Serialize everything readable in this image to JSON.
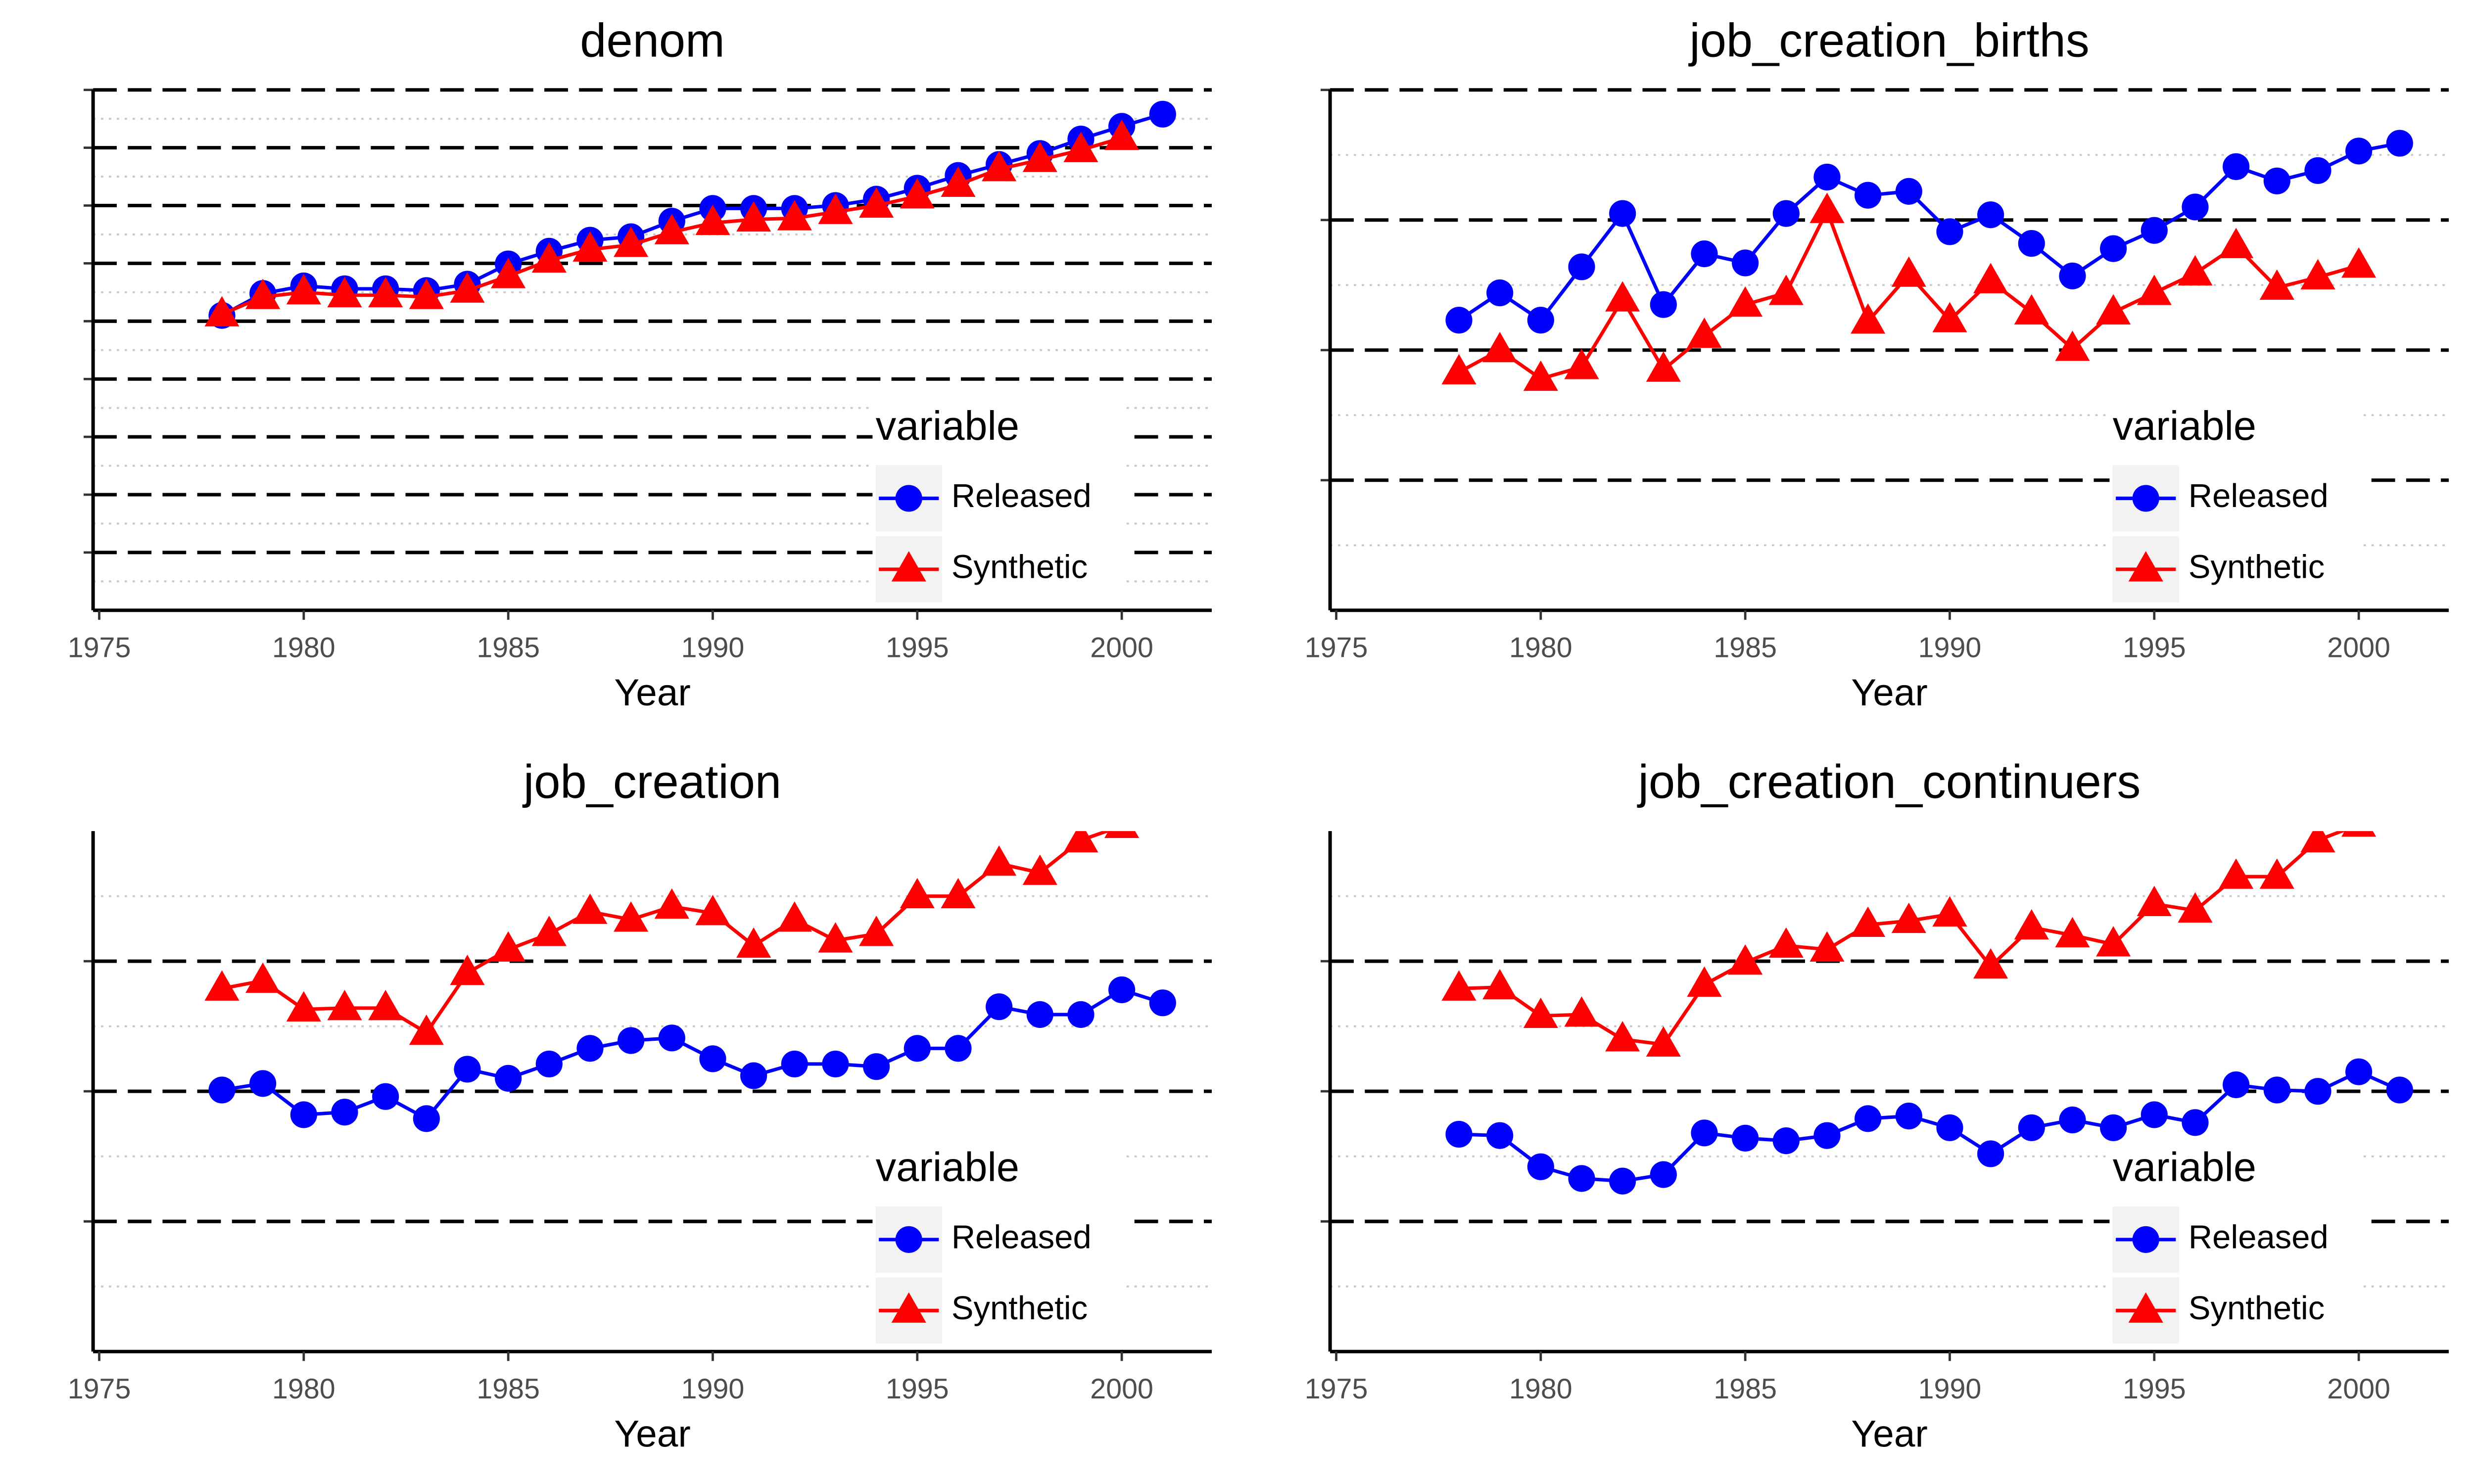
{
  "chart_data": [
    {
      "type": "line",
      "title": "denom",
      "x_label": "Year",
      "x": [
        1978,
        1979,
        1980,
        1981,
        1982,
        1983,
        1984,
        1985,
        1986,
        1987,
        1988,
        1989,
        1990,
        1991,
        1992,
        1993,
        1994,
        1995,
        1996,
        1997,
        1998,
        1999,
        2000,
        2001
      ],
      "series": [
        {
          "name": "Released",
          "color": "#0000ff",
          "marker": "circle",
          "values": [
            5.1,
            5.48,
            5.61,
            5.56,
            5.56,
            5.53,
            5.64,
            5.99,
            6.21,
            6.4,
            6.46,
            6.73,
            6.95,
            6.95,
            6.95,
            7.0,
            7.11,
            7.3,
            7.52,
            7.71,
            7.9,
            8.15,
            8.37,
            8.58
          ]
        },
        {
          "name": "Synthetic",
          "color": "#ff0000",
          "marker": "triangle",
          "values": [
            5.12,
            5.42,
            5.5,
            5.45,
            5.45,
            5.42,
            5.53,
            5.78,
            6.05,
            6.24,
            6.32,
            6.54,
            6.7,
            6.76,
            6.78,
            6.89,
            7.0,
            7.16,
            7.36,
            7.63,
            7.79,
            7.96,
            8.17,
            null
          ]
        }
      ],
      "xlim": [
        1974.85,
        2002.2
      ],
      "xticks": [
        1975,
        1980,
        1985,
        1990,
        1995,
        2000
      ],
      "ylim": [
        0,
        9
      ],
      "yticks": [
        1,
        2,
        3,
        4,
        5,
        6,
        7,
        8,
        9
      ],
      "grid": true,
      "legend_title": "variable",
      "legend_position": "bottom-right"
    },
    {
      "type": "line",
      "title": "job_creation_births",
      "x_label": "Year",
      "x": [
        1978,
        1979,
        1980,
        1981,
        1982,
        1983,
        1984,
        1985,
        1986,
        1987,
        1988,
        1989,
        1990,
        1991,
        1992,
        1993,
        1994,
        1995,
        1996,
        1997,
        1998,
        1999,
        2000,
        2001
      ],
      "series": [
        {
          "name": "Released",
          "color": "#0000ff",
          "marker": "circle",
          "values": [
            2.23,
            2.44,
            2.23,
            2.64,
            3.05,
            2.35,
            2.74,
            2.67,
            3.05,
            3.33,
            3.19,
            3.22,
            2.91,
            3.04,
            2.82,
            2.57,
            2.78,
            2.92,
            3.1,
            3.41,
            3.3,
            3.38,
            3.53,
            3.59
          ]
        },
        {
          "name": "Synthetic",
          "color": "#ff0000",
          "marker": "triangle",
          "values": [
            1.83,
            2.0,
            1.78,
            1.87,
            2.39,
            1.85,
            2.11,
            2.35,
            2.44,
            3.07,
            2.22,
            2.58,
            2.23,
            2.53,
            2.29,
            2.01,
            2.29,
            2.44,
            2.59,
            2.8,
            2.48,
            2.56,
            2.65,
            null
          ]
        }
      ],
      "xlim": [
        1974.85,
        2002.2
      ],
      "xticks": [
        1975,
        1980,
        1985,
        1990,
        1995,
        2000
      ],
      "ylim": [
        0,
        4
      ],
      "yticks": [
        1,
        2,
        3,
        4
      ],
      "grid": true,
      "legend_title": "variable",
      "legend_position": "bottom-right"
    },
    {
      "type": "line",
      "title": "job_creation",
      "x_label": "Year",
      "x": [
        1978,
        1979,
        1980,
        1981,
        1982,
        1983,
        1984,
        1985,
        1986,
        1987,
        1988,
        1989,
        1990,
        1991,
        1992,
        1993,
        1994,
        1995,
        1996,
        1997,
        1998,
        1999,
        2000,
        2001
      ],
      "series": [
        {
          "name": "Released",
          "color": "#0000ff",
          "marker": "circle",
          "values": [
            2.01,
            2.06,
            1.82,
            1.84,
            1.96,
            1.79,
            2.17,
            2.1,
            2.21,
            2.33,
            2.39,
            2.41,
            2.25,
            2.12,
            2.21,
            2.21,
            2.19,
            2.33,
            2.33,
            2.65,
            2.59,
            2.59,
            2.78,
            2.68
          ]
        },
        {
          "name": "Synthetic",
          "color": "#ff0000",
          "marker": "triangle",
          "values": [
            2.79,
            2.85,
            2.63,
            2.64,
            2.64,
            2.45,
            2.91,
            3.09,
            3.21,
            3.38,
            3.32,
            3.42,
            3.37,
            3.12,
            3.32,
            3.16,
            3.21,
            3.5,
            3.5,
            3.75,
            3.68,
            3.93,
            4.04,
            null
          ]
        }
      ],
      "xlim": [
        1974.85,
        2002.2
      ],
      "xticks": [
        1975,
        1980,
        1985,
        1990,
        1995,
        2000
      ],
      "ylim": [
        0,
        4
      ],
      "yticks": [
        1,
        2,
        3
      ],
      "grid": true,
      "legend_title": "variable",
      "legend_position": "bottom-right"
    },
    {
      "type": "line",
      "title": "job_creation_continuers",
      "x_label": "Year",
      "x": [
        1978,
        1979,
        1980,
        1981,
        1982,
        1983,
        1984,
        1985,
        1986,
        1987,
        1988,
        1989,
        1990,
        1991,
        1992,
        1993,
        1994,
        1995,
        1996,
        1997,
        1998,
        1999,
        2000,
        2001
      ],
      "series": [
        {
          "name": "Released",
          "color": "#0000ff",
          "marker": "circle",
          "values": [
            1.67,
            1.66,
            1.42,
            1.33,
            1.31,
            1.36,
            1.68,
            1.64,
            1.62,
            1.66,
            1.79,
            1.81,
            1.72,
            1.52,
            1.72,
            1.78,
            1.72,
            1.82,
            1.76,
            2.05,
            2.01,
            2.0,
            2.15,
            2.01
          ]
        },
        {
          "name": "Synthetic",
          "color": "#ff0000",
          "marker": "triangle",
          "values": [
            2.79,
            2.8,
            2.58,
            2.59,
            2.4,
            2.36,
            2.82,
            2.99,
            3.12,
            3.09,
            3.28,
            3.31,
            3.36,
            2.96,
            3.26,
            3.2,
            3.13,
            3.44,
            3.39,
            3.65,
            3.65,
            3.93,
            4.05,
            null
          ]
        }
      ],
      "xlim": [
        1974.85,
        2002.2
      ],
      "xticks": [
        1975,
        1980,
        1985,
        1990,
        1995,
        2000
      ],
      "ylim": [
        0,
        4
      ],
      "yticks": [
        1,
        2,
        3
      ],
      "grid": true,
      "legend_title": "variable",
      "legend_position": "bottom-right"
    }
  ]
}
